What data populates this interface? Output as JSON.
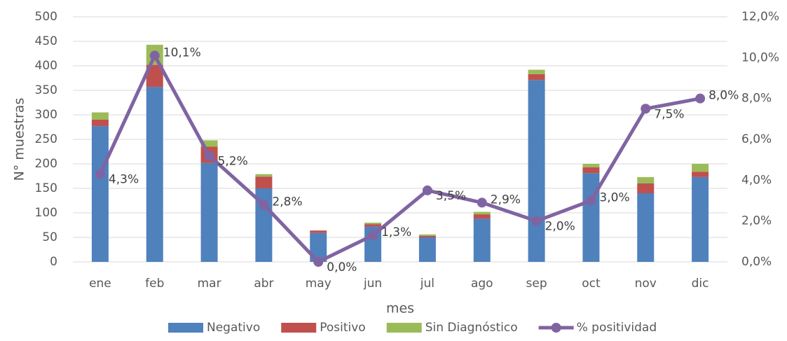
{
  "chart_data": {
    "type": "bar",
    "x_label": "mes",
    "y_label": "N° muestras",
    "categories": [
      "ene",
      "feb",
      "mar",
      "abr",
      "may",
      "jun",
      "jul",
      "ago",
      "sep",
      "oct",
      "nov",
      "dic"
    ],
    "series": [
      {
        "name": "Negativo",
        "color": "#4f81bd",
        "values": [
          277,
          357,
          202,
          150,
          59,
          72,
          50,
          88,
          371,
          181,
          140,
          173
        ]
      },
      {
        "name": "Positivo",
        "color": "#c0504d",
        "values": [
          13,
          45,
          33,
          24,
          5,
          5,
          3,
          9,
          12,
          12,
          20,
          11
        ]
      },
      {
        "name": "Sin Diagnóstico",
        "color": "#9bbb59",
        "values": [
          15,
          41,
          13,
          5,
          0,
          3,
          3,
          5,
          9,
          7,
          13,
          16
        ]
      },
      {
        "name": "% positividad",
        "color": "#8064a2",
        "type": "line",
        "axis": "y2",
        "values": [
          4.3,
          10.1,
          5.2,
          2.8,
          0.0,
          1.3,
          3.5,
          2.9,
          2.0,
          3.0,
          7.5,
          8.0
        ],
        "value_labels": [
          "4,3%",
          "10,1%",
          "5,2%",
          "2,8%",
          "0,0%",
          "1,3%",
          "3,5%",
          "2,9%",
          "2,0%",
          "3,0%",
          "7,5%",
          "8,0%"
        ]
      }
    ],
    "ylim": [
      0,
      500
    ],
    "yticks": [
      0,
      50,
      100,
      150,
      200,
      250,
      300,
      350,
      400,
      450,
      500
    ],
    "y2lim": [
      0,
      12
    ],
    "y2ticks": [
      {
        "value": 0,
        "label": "0,0%"
      },
      {
        "value": 2,
        "label": "2,0%"
      },
      {
        "value": 4,
        "label": "4,0%"
      },
      {
        "value": 6,
        "label": "6,0%"
      },
      {
        "value": 8,
        "label": "8,0%"
      },
      {
        "value": 10,
        "label": "10,0%"
      },
      {
        "value": 12,
        "label": "12,0%"
      }
    ],
    "stacked": true,
    "grid": true,
    "legend": "bottom"
  }
}
